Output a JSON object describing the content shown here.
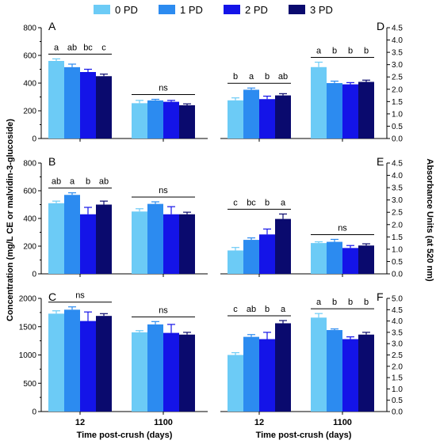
{
  "legend": {
    "items": [
      {
        "label": "0 PD",
        "color": "#6CCBF6"
      },
      {
        "label": "1 PD",
        "color": "#2C8BF0"
      },
      {
        "label": "2 PD",
        "color": "#1414E8"
      },
      {
        "label": "3 PD",
        "color": "#0A0A6E"
      }
    ]
  },
  "y_axis_left_label": "Concentration (mg/L CE or malvidin-3-glucoside)",
  "y_axis_right_label": "Absorbance Units  (at 520 nm)",
  "x_axis_label": "Time post-crush (days)",
  "chart_data": [
    {
      "type": "bar",
      "panel_letter": "A",
      "side": "left",
      "categories": [
        "12",
        "1100"
      ],
      "series": [
        {
          "name": "0 PD",
          "values": [
            560,
            255
          ],
          "errors": [
            15,
            20
          ]
        },
        {
          "name": "1 PD",
          "values": [
            515,
            275
          ],
          "errors": [
            22,
            8
          ]
        },
        {
          "name": "2 PD",
          "values": [
            480,
            265
          ],
          "errors": [
            20,
            10
          ]
        },
        {
          "name": "3 PD",
          "values": [
            450,
            240
          ],
          "errors": [
            15,
            10
          ]
        }
      ],
      "ylim": [
        0,
        800
      ],
      "yticks": [
        "0",
        "200",
        "400",
        "600",
        "800"
      ],
      "group_annotations": [
        {
          "labels": [
            "a",
            "ab",
            "bc",
            "c"
          ]
        },
        {
          "labels": [
            "ns"
          ]
        }
      ]
    },
    {
      "type": "bar",
      "panel_letter": "B",
      "side": "left",
      "categories": [
        "12",
        "1100"
      ],
      "series": [
        {
          "name": "0 PD",
          "values": [
            510,
            450
          ],
          "errors": [
            15,
            20
          ]
        },
        {
          "name": "1 PD",
          "values": [
            570,
            505
          ],
          "errors": [
            15,
            15
          ]
        },
        {
          "name": "2 PD",
          "values": [
            430,
            430
          ],
          "errors": [
            50,
            55
          ]
        },
        {
          "name": "3 PD",
          "values": [
            500,
            430
          ],
          "errors": [
            25,
            15
          ]
        }
      ],
      "ylim": [
        0,
        800
      ],
      "yticks": [
        "0",
        "200",
        "400",
        "600",
        "800"
      ],
      "group_annotations": [
        {
          "labels": [
            "ab",
            "a",
            "b",
            "ab"
          ]
        },
        {
          "labels": [
            "ns"
          ]
        }
      ]
    },
    {
      "type": "bar",
      "panel_letter": "C",
      "side": "left",
      "categories": [
        "12",
        "1100"
      ],
      "series": [
        {
          "name": "0 PD",
          "values": [
            1730,
            1400
          ],
          "errors": [
            50,
            30
          ]
        },
        {
          "name": "1 PD",
          "values": [
            1800,
            1540
          ],
          "errors": [
            50,
            50
          ]
        },
        {
          "name": "2 PD",
          "values": [
            1600,
            1390
          ],
          "errors": [
            160,
            150
          ]
        },
        {
          "name": "3 PD",
          "values": [
            1690,
            1360
          ],
          "errors": [
            40,
            40
          ]
        }
      ],
      "ylim": [
        0,
        2000
      ],
      "yticks": [
        "0",
        "500",
        "1000",
        "1500",
        "2000"
      ],
      "group_annotations": [
        {
          "labels": [
            "ns"
          ]
        },
        {
          "labels": [
            "ns"
          ]
        }
      ]
    },
    {
      "type": "bar",
      "panel_letter": "D",
      "side": "right",
      "categories": [
        "12",
        "1100"
      ],
      "series": [
        {
          "name": "0 PD",
          "values": [
            1.55,
            2.9
          ],
          "errors": [
            0.1,
            0.2
          ]
        },
        {
          "name": "1 PD",
          "values": [
            1.98,
            2.25
          ],
          "errors": [
            0.07,
            0.08
          ]
        },
        {
          "name": "2 PD",
          "values": [
            1.6,
            2.2
          ],
          "errors": [
            0.12,
            0.07
          ]
        },
        {
          "name": "3 PD",
          "values": [
            1.75,
            2.3
          ],
          "errors": [
            0.07,
            0.07
          ]
        }
      ],
      "ylim": [
        0,
        4.5
      ],
      "yticks": [
        "0.0",
        "0.5",
        "1.0",
        "1.5",
        "2.0",
        "2.5",
        "3.0",
        "3.5",
        "4.0",
        "4.5"
      ],
      "group_annotations": [
        {
          "labels": [
            "b",
            "a",
            "b",
            "ab"
          ]
        },
        {
          "labels": [
            "a",
            "b",
            "b",
            "b"
          ]
        }
      ]
    },
    {
      "type": "bar",
      "panel_letter": "E",
      "side": "right",
      "categories": [
        "12",
        "1100"
      ],
      "series": [
        {
          "name": "0 PD",
          "values": [
            0.95,
            1.25
          ],
          "errors": [
            0.12,
            0.05
          ]
        },
        {
          "name": "1 PD",
          "values": [
            1.38,
            1.3
          ],
          "errors": [
            0.08,
            0.1
          ]
        },
        {
          "name": "2 PD",
          "values": [
            1.6,
            1.05
          ],
          "errors": [
            0.22,
            0.1
          ]
        },
        {
          "name": "3 PD",
          "values": [
            2.23,
            1.15
          ],
          "errors": [
            0.2,
            0.07
          ]
        }
      ],
      "ylim": [
        0,
        4.5
      ],
      "yticks": [
        "0.0",
        "0.5",
        "1.0",
        "1.5",
        "2.0",
        "2.5",
        "3.0",
        "3.5",
        "4.0",
        "4.5"
      ],
      "group_annotations": [
        {
          "labels": [
            "c",
            "bc",
            "b",
            "a"
          ]
        },
        {
          "labels": [
            "ns"
          ]
        }
      ]
    },
    {
      "type": "bar",
      "panel_letter": "F",
      "side": "right",
      "categories": [
        "12",
        "1100"
      ],
      "series": [
        {
          "name": "0 PD",
          "values": [
            2.5,
            4.15
          ],
          "errors": [
            0.1,
            0.18
          ]
        },
        {
          "name": "1 PD",
          "values": [
            3.3,
            3.6
          ],
          "errors": [
            0.1,
            0.05
          ]
        },
        {
          "name": "2 PD",
          "values": [
            3.2,
            3.2
          ],
          "errors": [
            0.3,
            0.1
          ]
        },
        {
          "name": "3 PD",
          "values": [
            3.9,
            3.4
          ],
          "errors": [
            0.12,
            0.1
          ]
        }
      ],
      "ylim": [
        0,
        5.0
      ],
      "yticks": [
        "0.0",
        "0.5",
        "1.0",
        "1.5",
        "2.0",
        "2.5",
        "3.0",
        "3.5",
        "4.0",
        "4.5",
        "5.0"
      ],
      "group_annotations": [
        {
          "labels": [
            "c",
            "ab",
            "b",
            "a"
          ]
        },
        {
          "labels": [
            "a",
            "b",
            "b",
            "b"
          ]
        }
      ]
    }
  ]
}
